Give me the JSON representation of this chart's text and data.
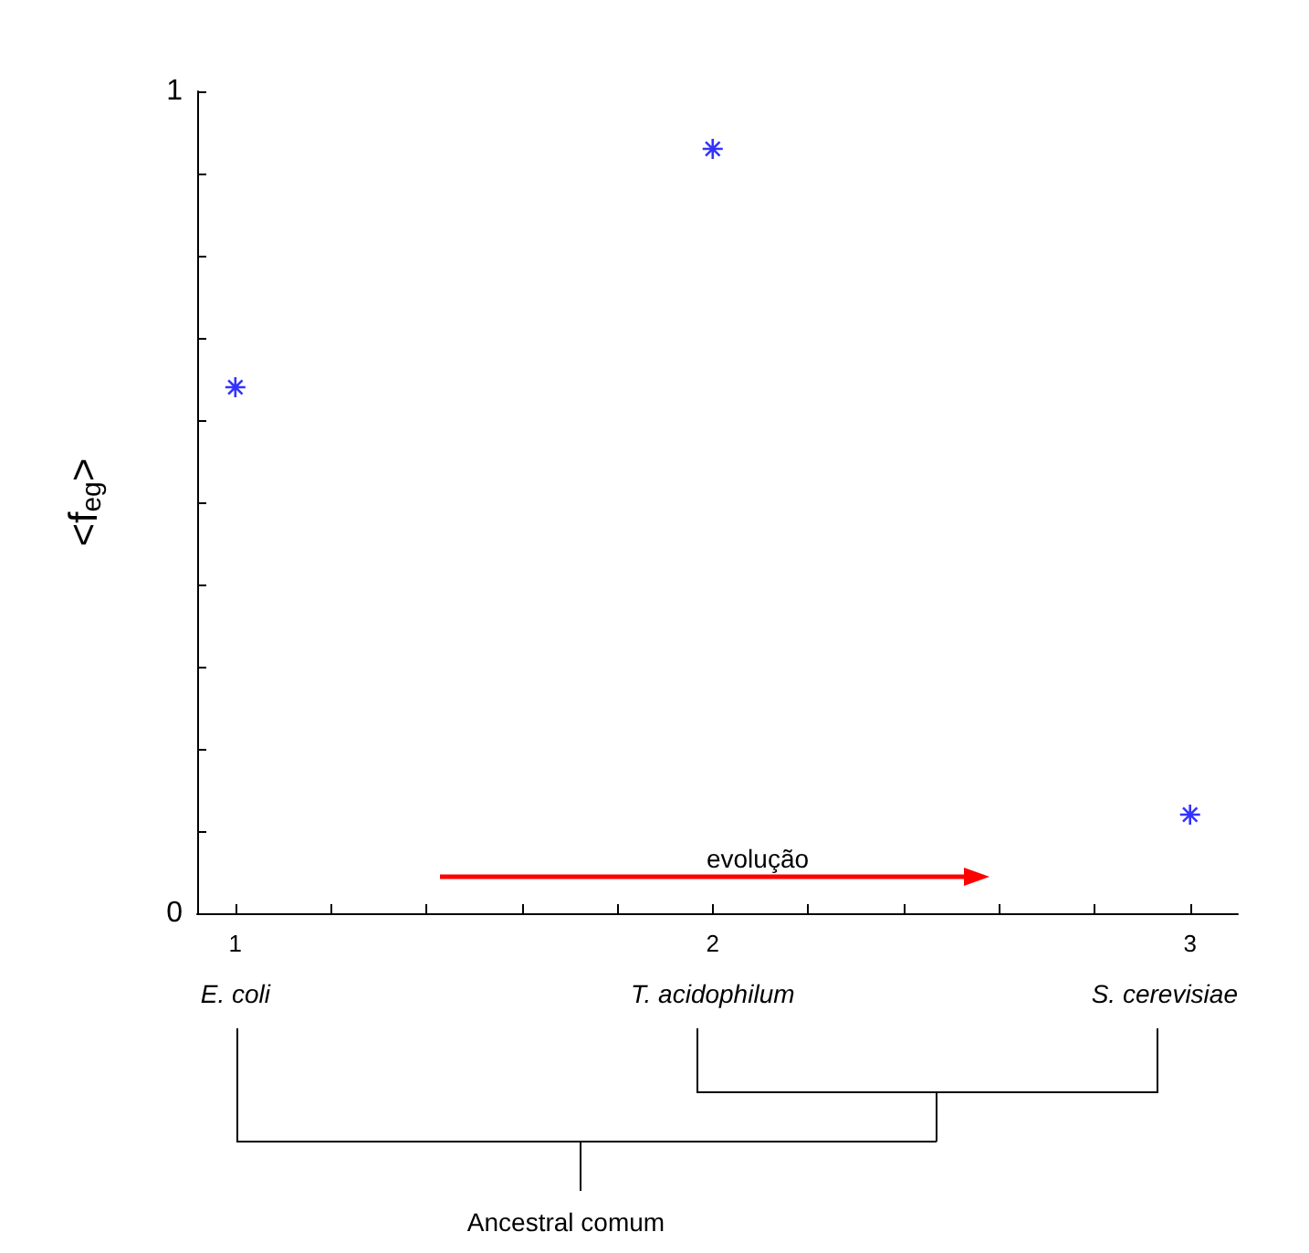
{
  "chart_data": {
    "type": "scatter",
    "ylabel": "<f$_{eg}$>",
    "x": [
      1,
      2,
      3
    ],
    "series": [
      {
        "color": "#0000ff",
        "values": [
          0.64,
          0.93,
          0.12
        ]
      }
    ],
    "xlim": [
      0.92,
      3.1
    ],
    "xticks": [
      1,
      {
        "value": 1.2,
        "label": null
      },
      {
        "value": 1.4,
        "label": null
      },
      {
        "value": 1.6,
        "label": null
      },
      {
        "value": 1.8,
        "label": null
      },
      2,
      {
        "value": 2.2,
        "label": null
      },
      {
        "value": 2.4,
        "label": null
      },
      {
        "value": 2.6,
        "label": null
      },
      {
        "value": 2.8,
        "label": null
      },
      3
    ],
    "ylim": [
      0,
      1
    ],
    "yticks": [
      0,
      {
        "value": 0.1,
        "label": null
      },
      {
        "value": 0.2,
        "label": null
      },
      {
        "value": 0.3,
        "label": null
      },
      {
        "value": 0.4,
        "label": null
      },
      {
        "value": 0.5,
        "label": null
      },
      {
        "value": 0.6,
        "label": null
      },
      {
        "value": 0.7,
        "label": null
      },
      {
        "value": 0.8,
        "label": null
      },
      {
        "value": 0.9,
        "label": null
      },
      1
    ],
    "grid": false,
    "marker": "cross",
    "annotations": [
      "evolução",
      "E. coli",
      "T. acidophilum",
      "S. cerevisiae",
      "Ancestral comum"
    ]
  }
}
